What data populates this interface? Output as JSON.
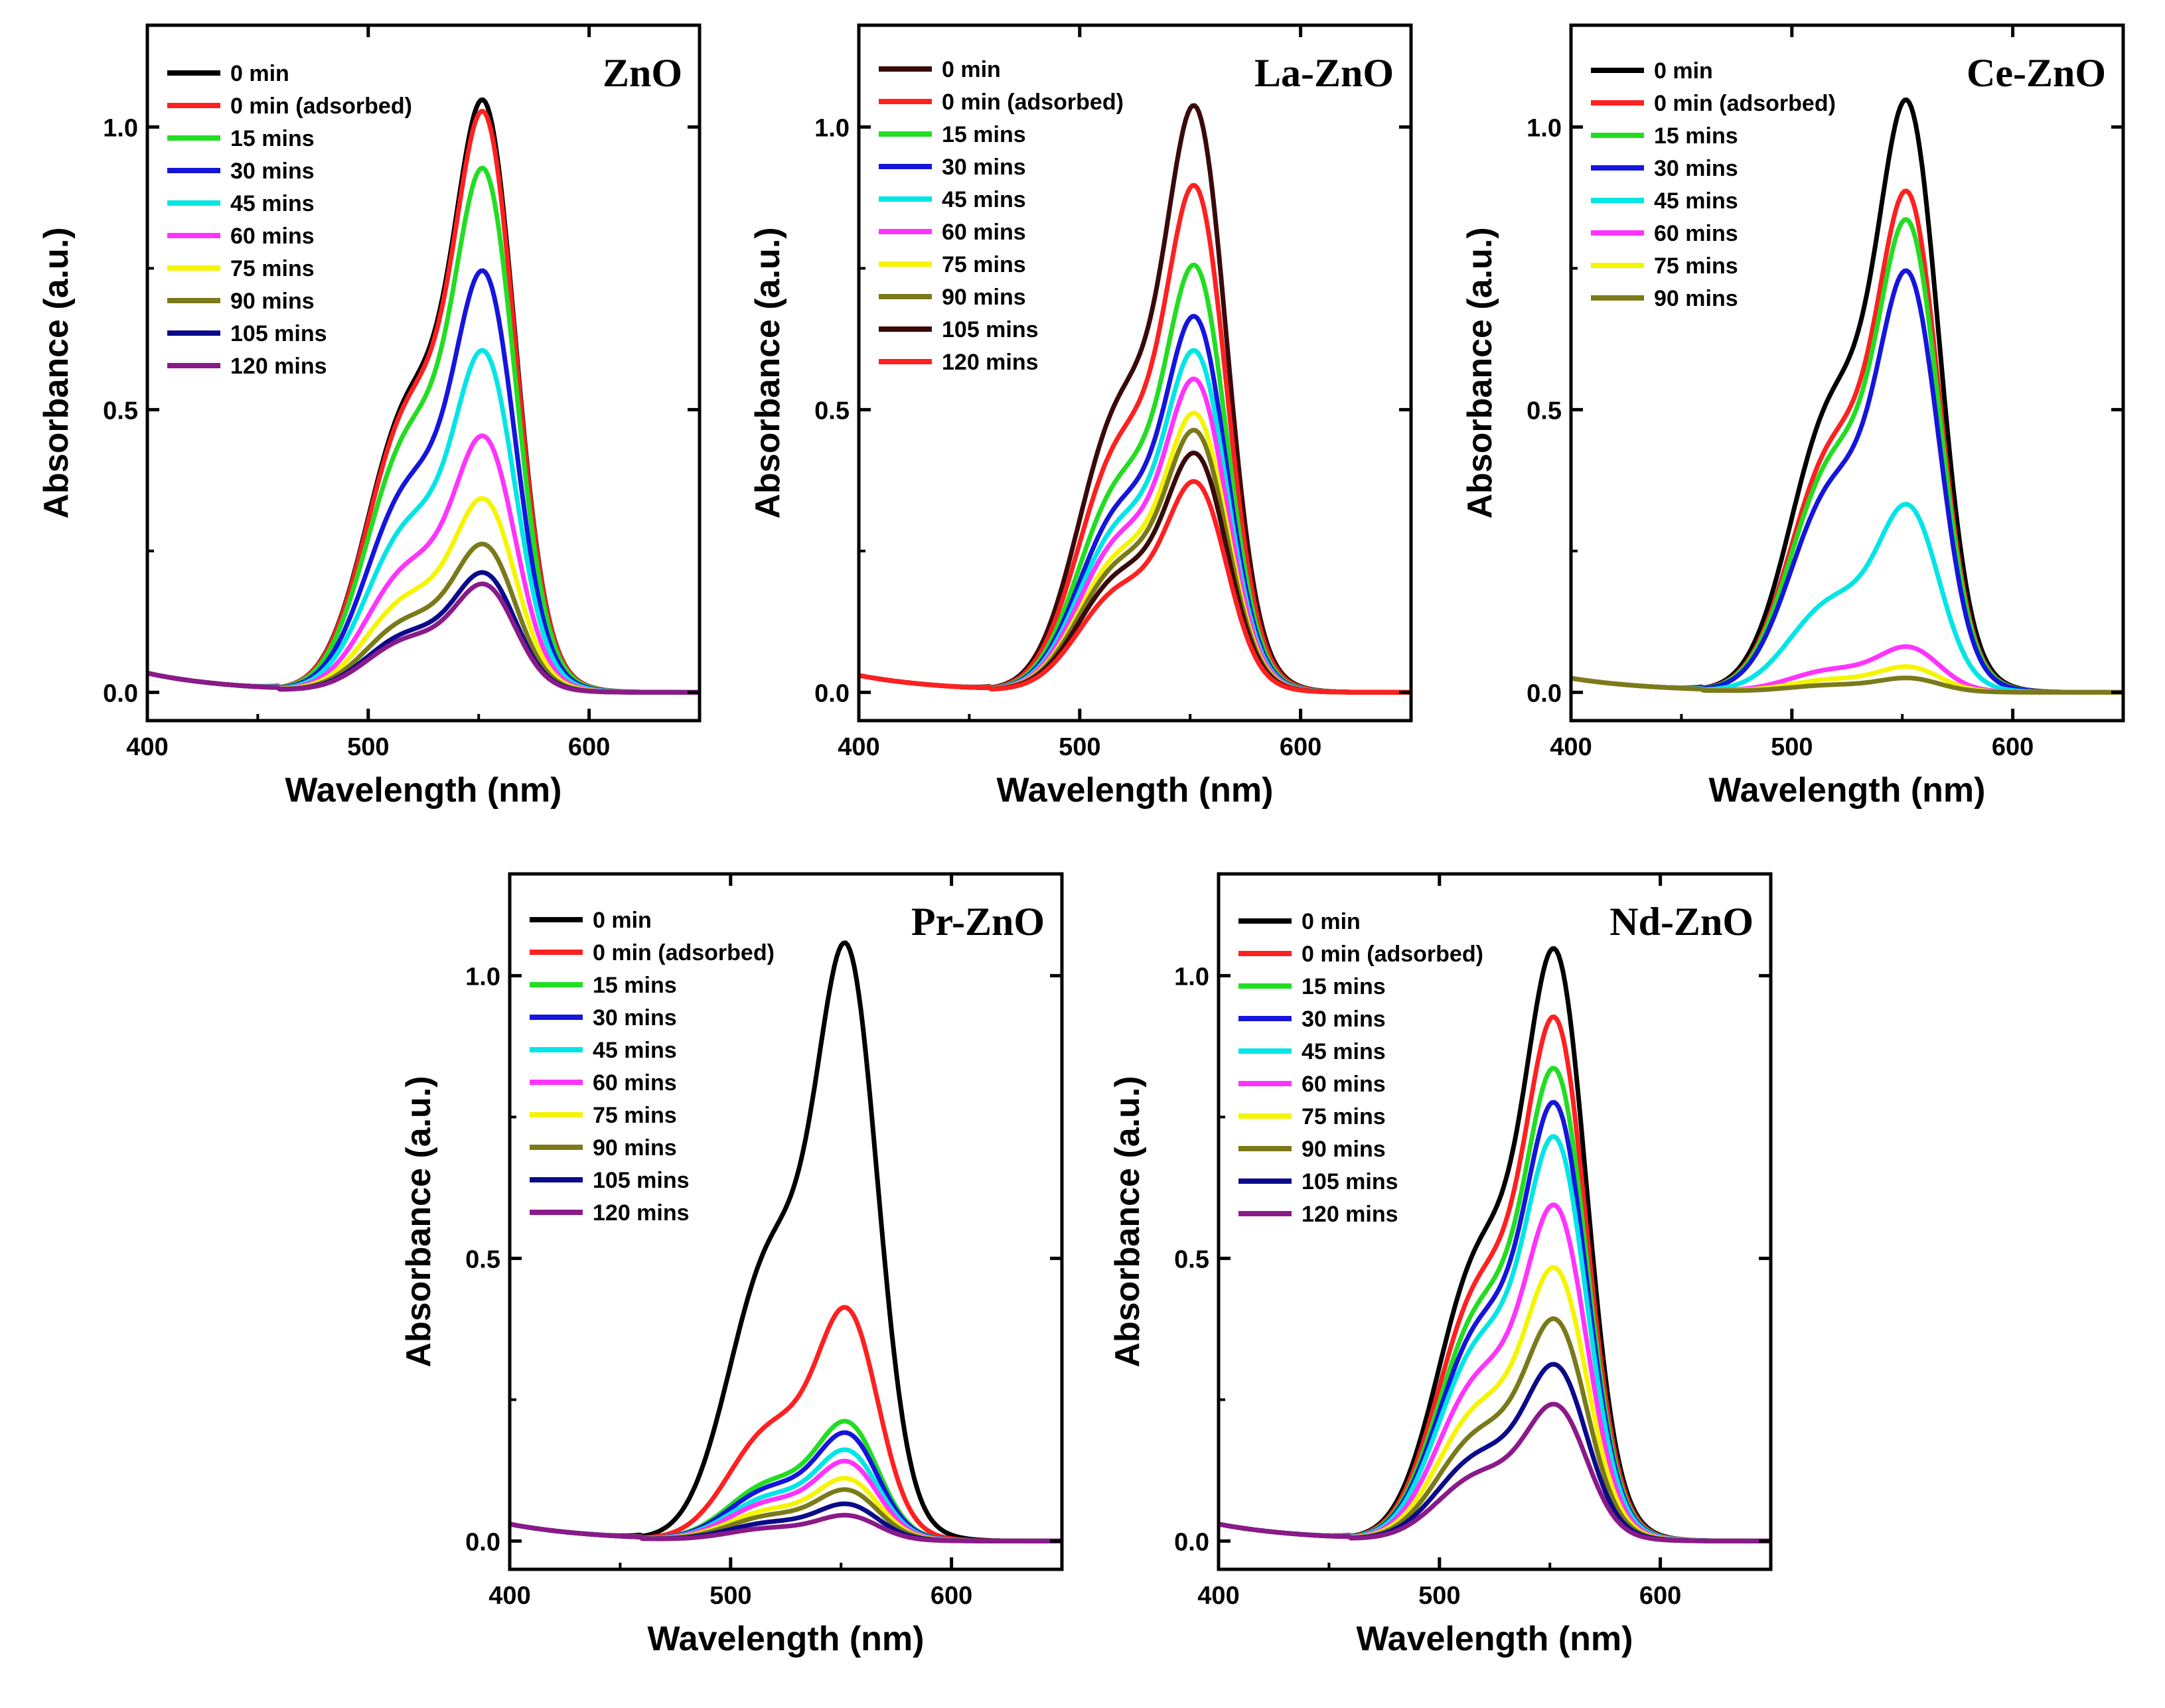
{
  "chart_data": [
    {
      "type": "line",
      "title": "ZnO",
      "xlabel": "Wavelength (nm)",
      "ylabel": "Absorbance (a.u.)",
      "xlim": [
        400,
        650
      ],
      "ylim": [
        -0.05,
        1.18
      ],
      "xticks": [
        "400",
        "500",
        "600"
      ],
      "yticks": [
        "0.0",
        "0.5",
        "1.0"
      ],
      "base_left": 0.034,
      "series": [
        {
          "name": "0 min",
          "color": "#000000",
          "peak": 1.04
        },
        {
          "name": "0 min (adsorbed)",
          "color": "#ff2020",
          "peak": 1.02
        },
        {
          "name": "15 mins",
          "color": "#22dd22",
          "peak": 0.92
        },
        {
          "name": "30 mins",
          "color": "#1515dd",
          "peak": 0.74
        },
        {
          "name": "45 mins",
          "color": "#00e5e5",
          "peak": 0.6
        },
        {
          "name": "60 mins",
          "color": "#ff33ff",
          "peak": 0.45
        },
        {
          "name": "75 mins",
          "color": "#f5f500",
          "peak": 0.34
        },
        {
          "name": "90 mins",
          "color": "#7a7a1a",
          "peak": 0.26
        },
        {
          "name": "105 mins",
          "color": "#0a0a8a",
          "peak": 0.21
        },
        {
          "name": "120 mins",
          "color": "#8a1a8a",
          "peak": 0.19
        }
      ]
    },
    {
      "type": "line",
      "title": "La-ZnO",
      "xlabel": "Wavelength (nm)",
      "ylabel": "Absorbance (a.u.)",
      "xlim": [
        400,
        650
      ],
      "ylim": [
        -0.05,
        1.18
      ],
      "xticks": [
        "400",
        "500",
        "600"
      ],
      "yticks": [
        "0.0",
        "0.5",
        "1.0"
      ],
      "base_left": 0.03,
      "series": [
        {
          "name": "0 min",
          "color": "#3a0a0a",
          "peak": 1.03
        },
        {
          "name": "0 min (adsorbed)",
          "color": "#ff2020",
          "peak": 0.89
        },
        {
          "name": "15 mins",
          "color": "#22dd22",
          "peak": 0.75
        },
        {
          "name": "30 mins",
          "color": "#1515dd",
          "peak": 0.66
        },
        {
          "name": "45 mins",
          "color": "#00e5e5",
          "peak": 0.6
        },
        {
          "name": "60 mins",
          "color": "#ff33ff",
          "peak": 0.55
        },
        {
          "name": "75 mins",
          "color": "#f5f500",
          "peak": 0.49
        },
        {
          "name": "90 mins",
          "color": "#7a7a1a",
          "peak": 0.46
        },
        {
          "name": "105 mins",
          "color": "#3a0a0a",
          "peak": 0.42
        },
        {
          "name": "120 mins",
          "color": "#ff2020",
          "peak": 0.37
        }
      ]
    },
    {
      "type": "line",
      "title": "Ce-ZnO",
      "xlabel": "Wavelength (nm)",
      "ylabel": "Absorbance (a.u.)",
      "xlim": [
        400,
        650
      ],
      "ylim": [
        -0.05,
        1.18
      ],
      "xticks": [
        "400",
        "500",
        "600"
      ],
      "yticks": [
        "0.0",
        "0.5",
        "1.0"
      ],
      "base_left": 0.025,
      "series": [
        {
          "name": "0 min",
          "color": "#000000",
          "peak": 1.04
        },
        {
          "name": "0 min (adsorbed)",
          "color": "#ff2020",
          "peak": 0.88
        },
        {
          "name": "15 mins",
          "color": "#22dd22",
          "peak": 0.83
        },
        {
          "name": "30 mins",
          "color": "#1515dd",
          "peak": 0.74
        },
        {
          "name": "45 mins",
          "color": "#00e5e5",
          "peak": 0.33
        },
        {
          "name": "60 mins",
          "color": "#ff33ff",
          "peak": 0.08
        },
        {
          "name": "75 mins",
          "color": "#f5f500",
          "peak": 0.045
        },
        {
          "name": "90 mins",
          "color": "#7a7a1a",
          "peak": 0.025
        }
      ]
    },
    {
      "type": "line",
      "title": "Pr-ZnO",
      "xlabel": "Wavelength (nm)",
      "ylabel": "Absorbance (a.u.)",
      "xlim": [
        400,
        650
      ],
      "ylim": [
        -0.05,
        1.18
      ],
      "xticks": [
        "400",
        "500",
        "600"
      ],
      "yticks": [
        "0.0",
        "0.5",
        "1.0"
      ],
      "base_left": 0.03,
      "series": [
        {
          "name": "0 min",
          "color": "#000000",
          "peak": 1.05
        },
        {
          "name": "0 min (adsorbed)",
          "color": "#ff2020",
          "peak": 0.41
        },
        {
          "name": "15 mins",
          "color": "#22dd22",
          "peak": 0.21
        },
        {
          "name": "30 mins",
          "color": "#1515dd",
          "peak": 0.19
        },
        {
          "name": "45 mins",
          "color": "#00e5e5",
          "peak": 0.16
        },
        {
          "name": "60 mins",
          "color": "#ff33ff",
          "peak": 0.14
        },
        {
          "name": "75 mins",
          "color": "#f5f500",
          "peak": 0.11
        },
        {
          "name": "90 mins",
          "color": "#7a7a1a",
          "peak": 0.09
        },
        {
          "name": "105 mins",
          "color": "#0a0a8a",
          "peak": 0.065
        },
        {
          "name": "120 mins",
          "color": "#8a1a8a",
          "peak": 0.045
        }
      ]
    },
    {
      "type": "line",
      "title": "Nd-ZnO",
      "xlabel": "Wavelength (nm)",
      "ylabel": "Absorbance (a.u.)",
      "xlim": [
        400,
        650
      ],
      "ylim": [
        -0.05,
        1.18
      ],
      "xticks": [
        "400",
        "500",
        "600"
      ],
      "yticks": [
        "0.0",
        "0.5",
        "1.0"
      ],
      "base_left": 0.03,
      "series": [
        {
          "name": "0 min",
          "color": "#000000",
          "peak": 1.04
        },
        {
          "name": "0 min (adsorbed)",
          "color": "#ff2020",
          "peak": 0.92
        },
        {
          "name": "15 mins",
          "color": "#22dd22",
          "peak": 0.83
        },
        {
          "name": "30 mins",
          "color": "#1515dd",
          "peak": 0.77
        },
        {
          "name": "45 mins",
          "color": "#00e5e5",
          "peak": 0.71
        },
        {
          "name": "60 mins",
          "color": "#ff33ff",
          "peak": 0.59
        },
        {
          "name": "75 mins",
          "color": "#f5f500",
          "peak": 0.48
        },
        {
          "name": "90 mins",
          "color": "#7a7a1a",
          "peak": 0.39
        },
        {
          "name": "105 mins",
          "color": "#0a0a8a",
          "peak": 0.31
        },
        {
          "name": "120 mins",
          "color": "#8a1a8a",
          "peak": 0.24
        }
      ]
    }
  ]
}
